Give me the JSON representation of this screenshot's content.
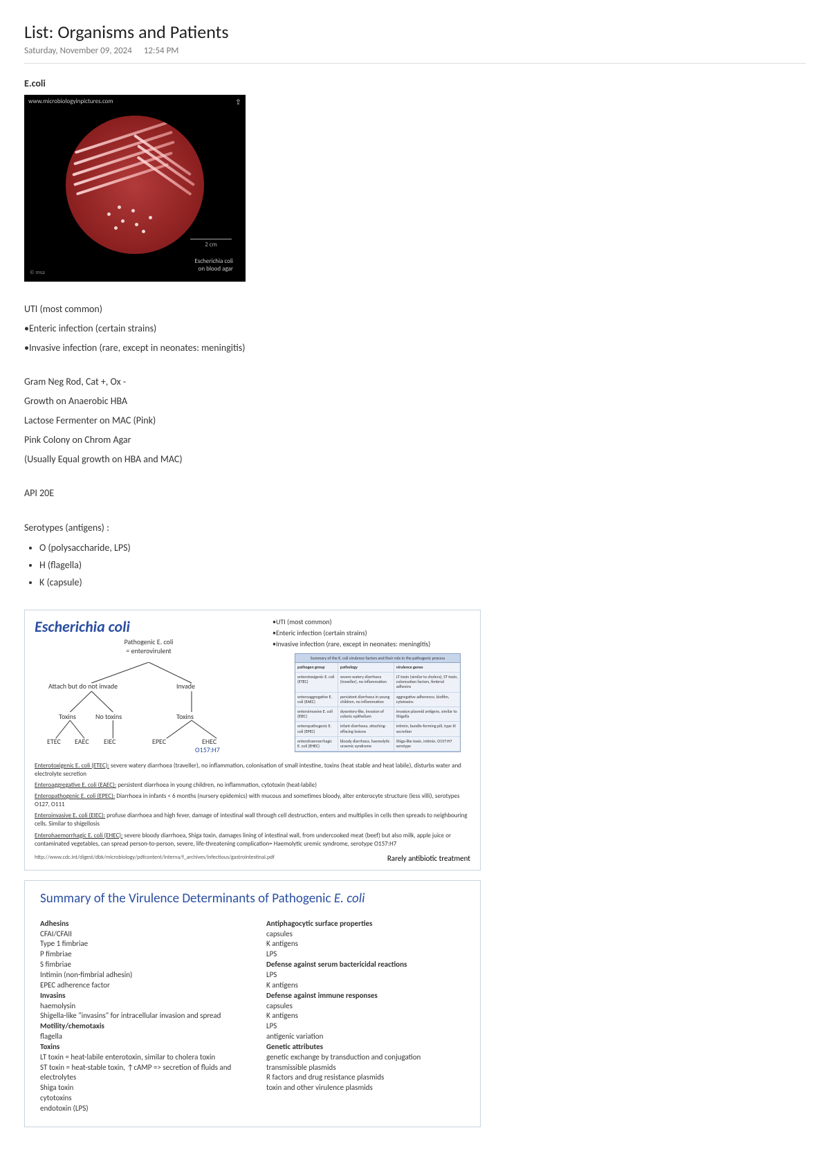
{
  "header": {
    "title": "List: Organisms and Patients",
    "date": "Saturday, November 09, 2024",
    "time": "12:54 PM"
  },
  "organism_label": "E.coli",
  "petri": {
    "url": "www.microbiologyinpictures.com",
    "scale": "2 cm",
    "caption_line1": "Escherichia coli",
    "caption_line2": "on blood agar",
    "credit": "© msa"
  },
  "infections": [
    "UTI (most common)",
    "•Enteric infection (certain strains)",
    "•Invasive infection (rare, except in neonates: meningitis)"
  ],
  "characteristics": [
    "Gram Neg Rod, Cat +, Ox -",
    "Growth on Anaerobic HBA",
    "Lactose Fermenter on MAC (Pink)",
    "Pink Colony on Chrom Agar",
    "(Usually Equal growth on HBA and MAC)"
  ],
  "api": "API 20E",
  "serotypes": {
    "heading": "Serotypes (antigens) :",
    "items": [
      "O (polysaccharide, LPS)",
      "H (flagella)",
      "K (capsule)"
    ]
  },
  "slide": {
    "title": "Escherichia coli",
    "sub1": "Pathogenic E. coli",
    "sub2": "= enterovirulent",
    "bullets": [
      "•UTI (most common)",
      "•Enteric infection (certain strains)",
      "•Invasive infection (rare, except in neonates: meningitis)"
    ],
    "tree": {
      "root_left": "Attach but do not invade",
      "root_right": "Invade",
      "mid": [
        "Toxins",
        "No toxins",
        "Toxins"
      ],
      "leaves": [
        "ETEC",
        "EAEC",
        "EIEC",
        "EPEC",
        "EHEC"
      ],
      "ehec_sub": "O157:H7"
    },
    "table": {
      "head": "Summary of the E. coli virulence factors and their role in the pathogenic process",
      "cols": [
        "pathogen group",
        "pathology",
        "virulence genes"
      ],
      "rows": [
        [
          "enterotoxigenic E. coli (ETEC)",
          "severe watery diarrhoea (traveller), no inflammation",
          "LT toxin (similar to cholera), ST toxin, colonisation factors, fimbrial adhesins"
        ],
        [
          "enteroaggregative E. coli (EAEC)",
          "persistent diarrhoea in young children, no inflammation",
          "aggregative adherence, biofilm, cytotoxins"
        ],
        [
          "enteroinvasive E. coli (EIEC)",
          "dysentery-like, invasion of colonic epithelium",
          "invasion plasmid antigens, similar to Shigella"
        ],
        [
          "enteropathogenic E. coli (EPEC)",
          "infant diarrhoea, attaching-effacing lesions",
          "intimin, bundle-forming pili, type III secretion"
        ],
        [
          "enterohaemorrhagic E. coli (EHEC)",
          "bloody diarrhoea, haemolytic uraemic syndrome",
          "Shiga-like toxin, intimin, O157:H7 serotype"
        ]
      ]
    },
    "strains": [
      {
        "u": "Enterotoxigenic E. coli (ETEC):",
        "t": " severe watery diarrhoea (traveller), no inflammation, colonisation of small intestine, toxins (heat stable and heat labile), disturbs water and electrolyte secretion"
      },
      {
        "u": "Enteroaggregative E. coli (EAEC):",
        "t": " persistent diarrhoea in young children, no inflammation, cytotoxin (heat-labile)"
      },
      {
        "u": "Enteropathogenic E. coli  (EPEC):",
        "t": " Diarrhoea in infants < 6 months (nursery epidemics) with mucous and sometimes bloody, alter enterocyte structure (less villi), serotypes O127, O111"
      },
      {
        "u": "Enteroinvasive E. coli (EIEC):",
        "t": " profuse diarrhoea and high fever, damage of intestinal wall through cell destruction, enters and multiplies in cells then spreads to neighbouring cells. Similar to shigellosis"
      },
      {
        "u": "Enterohaemorrhagic E. coli (EHEC):",
        "t": " severe bloody diarrhoea, Shiga toxin, damages lining of intestinal wall, from undercooked meat (beef) but also milk, apple juice or contaminated vegetables, can spread person-to-person, severe, life-threatening complication= Haemolytic uremic syndrome, serotype O157:H7"
      }
    ],
    "footer_url": "http://www.cdc.int/digest/dbk/microbiology/pdfcontent/interna/f_archives/infectious/gastrointestinal.pdf",
    "rarely": "Rarely antibiotic treatment"
  },
  "vslide": {
    "title_a": "Summary of the Virulence Determinants of Pathogenic ",
    "title_b": "E. coli",
    "left": [
      {
        "h": "Adhesins",
        "items": [
          "CFAI/CFAII",
          "Type 1 fimbriae",
          "P fimbriae",
          "S fimbriae",
          "Intimin (non-fimbrial adhesin)",
          "EPEC adherence factor"
        ]
      },
      {
        "h": "Invasins",
        "items": [
          "haemolysin",
          "Shigella-like \"invasins\" for intracellular invasion and spread"
        ]
      },
      {
        "h": "Motility/chemotaxis",
        "items": [
          "flagella"
        ]
      },
      {
        "h": "Toxins",
        "items": [
          "LT toxin = heat-labile enterotoxin, similar to cholera toxin",
          "ST toxin = heat-stable toxin, ↑cAMP => secretion of fluids and electrolytes",
          "Shiga toxin",
          "cytotoxins",
          "endotoxin (LPS)"
        ]
      }
    ],
    "right": [
      {
        "h": "Antiphagocytic surface properties",
        "items": [
          "capsules",
          "K antigens",
          "LPS"
        ]
      },
      {
        "h": "Defense against serum bactericidal reactions",
        "items": [
          "LPS",
          "K antigens"
        ]
      },
      {
        "h": "Defense against immune responses",
        "items": [
          "capsules",
          "K antigens",
          "LPS",
          "antigenic variation"
        ]
      },
      {
        "h": "Genetic attributes",
        "items": [
          "genetic exchange by transduction and conjugation",
          "transmissible plasmids",
          "R factors and drug resistance plasmids",
          "toxin and other virulence plasmids"
        ]
      }
    ]
  }
}
